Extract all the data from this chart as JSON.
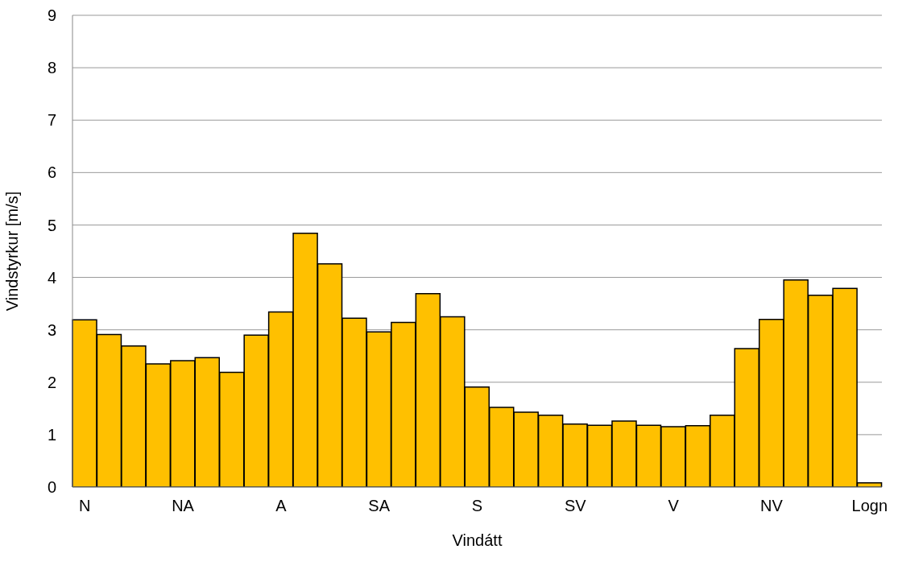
{
  "chart_data": {
    "type": "bar",
    "xlabel": "Vindátt",
    "ylabel": "Vindstyrkur [m/s]",
    "categories": [
      "N",
      null,
      null,
      null,
      "NA",
      null,
      null,
      null,
      "A",
      null,
      null,
      null,
      "SA",
      null,
      null,
      null,
      "S",
      null,
      null,
      null,
      "SV",
      null,
      null,
      null,
      "V",
      null,
      null,
      null,
      "NV",
      null,
      null,
      null,
      "Logn"
    ],
    "values": [
      3.19,
      2.91,
      2.69,
      2.35,
      2.41,
      2.47,
      2.19,
      2.9,
      3.34,
      4.84,
      4.26,
      3.22,
      2.96,
      3.14,
      3.69,
      3.25,
      1.91,
      1.52,
      1.43,
      1.37,
      1.2,
      1.18,
      1.26,
      1.18,
      1.15,
      1.17,
      1.37,
      2.64,
      3.2,
      3.95,
      3.66,
      3.79,
      0.08
    ],
    "color": "#ffc000",
    "ylim": [
      0,
      9
    ],
    "yticks": [
      0,
      1,
      2,
      3,
      4,
      5,
      6,
      7,
      8,
      9
    ],
    "grid": "y"
  }
}
